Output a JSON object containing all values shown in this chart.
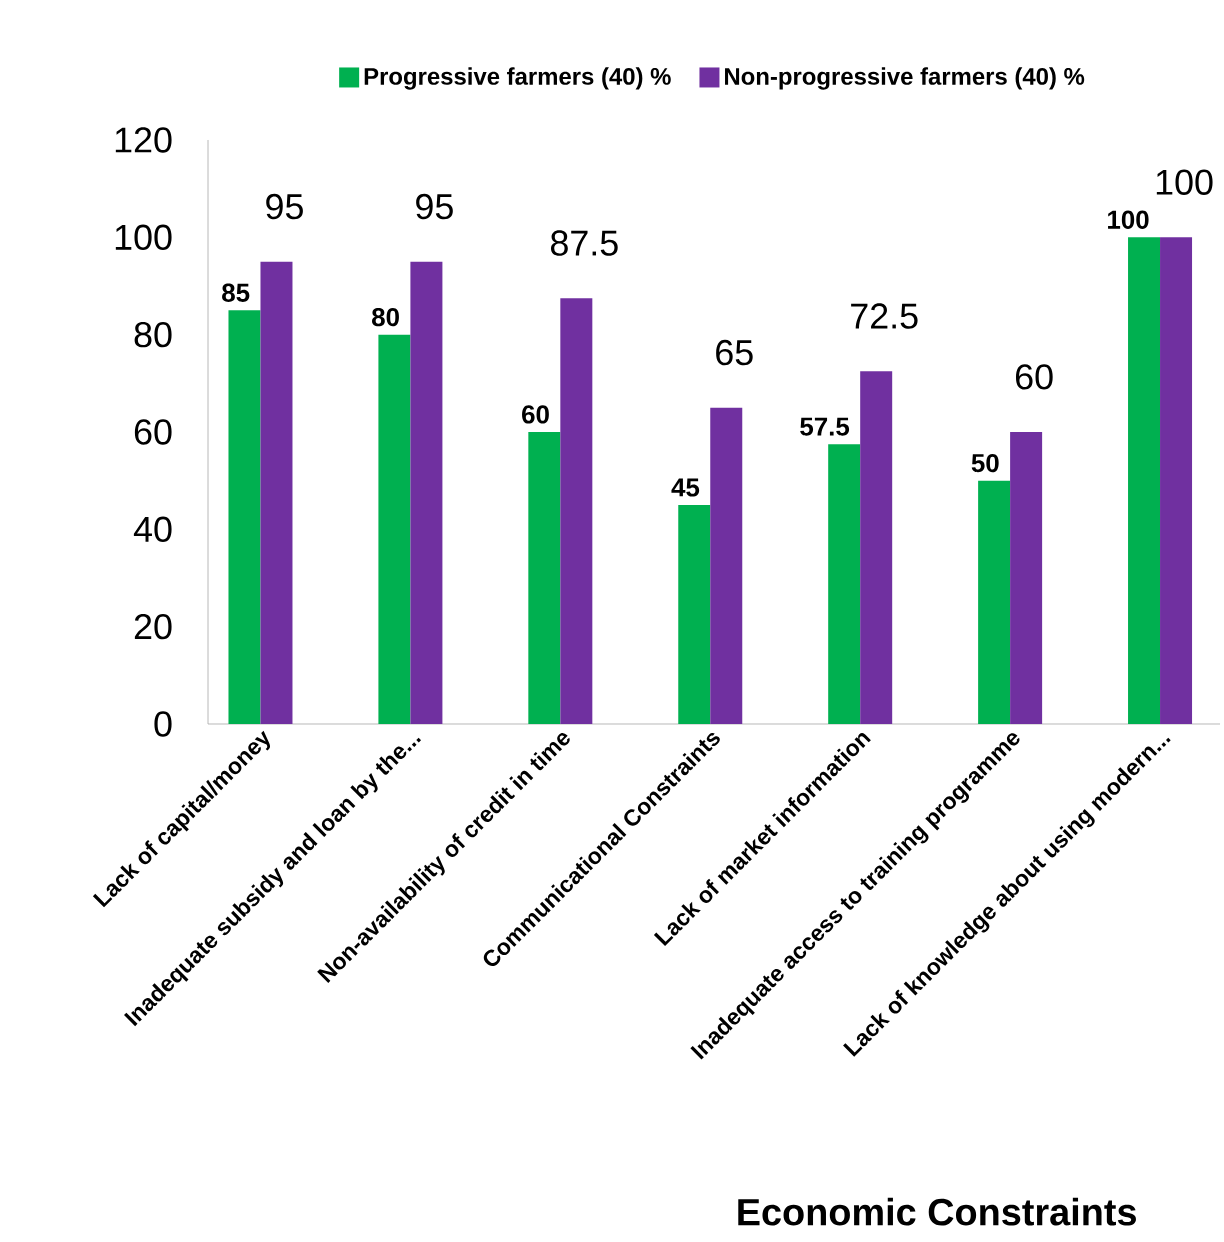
{
  "chart_data": {
    "type": "bar",
    "xlabel": "Economic Constraints",
    "categories": [
      "Lack of capital/money",
      "Inadequate subsidy and loan by the...",
      "Non-availability of credit in time",
      "Communicational Constraints",
      "Lack of market information",
      "Inadequate access to training programme",
      "Lack of knowledge about using modern..."
    ],
    "series": [
      {
        "name": "Progressive farmers (40) %",
        "color": "#00b050",
        "values": [
          85,
          80,
          60,
          45,
          57.5,
          50,
          100
        ]
      },
      {
        "name": "Non-progressive farmers (40) %",
        "color": "#7030a0",
        "values": [
          95,
          95,
          87.5,
          65,
          72.5,
          60,
          100
        ]
      }
    ],
    "ylim": [
      0,
      120
    ],
    "yticks": [
      0,
      20,
      40,
      60,
      80,
      100,
      120
    ],
    "data_labels": true,
    "legend": "top"
  }
}
